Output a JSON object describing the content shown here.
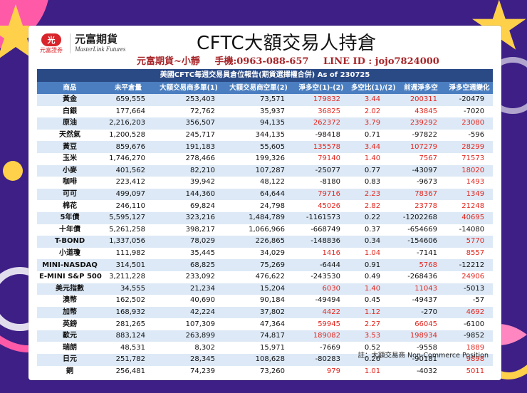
{
  "brand": {
    "badge": "光",
    "sub": "元富證券",
    "name": "元富期貨",
    "en": "MasterLink Futures"
  },
  "title": "CFTC大額交易人持倉",
  "contact": {
    "name": "元富期貨~小靜",
    "phone": "手機:0963-088-657",
    "line": "LINE ID : jojo7824000"
  },
  "table": {
    "caption": "美國CFTC每週交易員倉位報告(期貨選擇權合併) As of  230725",
    "headers": [
      "商品",
      "未平倉量",
      "大額交易商多單(1)",
      "大額交易商空單(2)",
      "淨多空(1)-(2)",
      "多空比(1)/(2)",
      "前週淨多空",
      "淨多空週變化"
    ],
    "rows": [
      [
        "黃金",
        "659,555",
        "253,403",
        "73,571",
        "179832",
        "3.44",
        "200311",
        "-20479"
      ],
      [
        "白銀",
        "177,664",
        "72,762",
        "35,937",
        "36825",
        "2.02",
        "43845",
        "-7020"
      ],
      [
        "原油",
        "2,216,203",
        "356,507",
        "94,135",
        "262372",
        "3.79",
        "239292",
        "23080"
      ],
      [
        "天然氣",
        "1,200,528",
        "245,717",
        "344,135",
        "-98418",
        "0.71",
        "-97822",
        "-596"
      ],
      [
        "黃豆",
        "859,676",
        "191,183",
        "55,605",
        "135578",
        "3.44",
        "107279",
        "28299"
      ],
      [
        "玉米",
        "1,746,270",
        "278,466",
        "199,326",
        "79140",
        "1.40",
        "7567",
        "71573"
      ],
      [
        "小麥",
        "401,562",
        "82,210",
        "107,287",
        "-25077",
        "0.77",
        "-43097",
        "18020"
      ],
      [
        "咖啡",
        "223,412",
        "39,942",
        "48,122",
        "-8180",
        "0.83",
        "-9673",
        "1493"
      ],
      [
        "可可",
        "499,097",
        "144,360",
        "64,644",
        "79716",
        "2.23",
        "78367",
        "1349"
      ],
      [
        "棉花",
        "246,110",
        "69,824",
        "24,798",
        "45026",
        "2.82",
        "23778",
        "21248"
      ],
      [
        "5年債",
        "5,595,127",
        "323,216",
        "1,484,789",
        "-1161573",
        "0.22",
        "-1202268",
        "40695"
      ],
      [
        "十年債",
        "5,261,258",
        "398,217",
        "1,066,966",
        "-668749",
        "0.37",
        "-654669",
        "-14080"
      ],
      [
        "T-BOND",
        "1,337,056",
        "78,029",
        "226,865",
        "-148836",
        "0.34",
        "-154606",
        "5770"
      ],
      [
        "小道瓊",
        "111,982",
        "35,445",
        "34,029",
        "1416",
        "1.04",
        "-7141",
        "8557"
      ],
      [
        "MINI-NASDAQ",
        "314,501",
        "68,825",
        "75,269",
        "-6444",
        "0.91",
        "5768",
        "-12212"
      ],
      [
        "E-MINI S&P 500",
        "3,211,228",
        "233,092",
        "476,622",
        "-243530",
        "0.49",
        "-268436",
        "24906"
      ],
      [
        "美元指數",
        "34,555",
        "21,234",
        "15,204",
        "6030",
        "1.40",
        "11043",
        "-5013"
      ],
      [
        "澳幣",
        "162,502",
        "40,690",
        "90,184",
        "-49494",
        "0.45",
        "-49437",
        "-57"
      ],
      [
        "加幣",
        "168,932",
        "42,224",
        "37,802",
        "4422",
        "1.12",
        "-270",
        "4692"
      ],
      [
        "英鎊",
        "281,265",
        "107,309",
        "47,364",
        "59945",
        "2.27",
        "66045",
        "-6100"
      ],
      [
        "歐元",
        "883,124",
        "263,899",
        "74,817",
        "189082",
        "3.53",
        "198934",
        "-9852"
      ],
      [
        "瑞朗",
        "48,531",
        "8,302",
        "15,971",
        "-7669",
        "0.52",
        "-9558",
        "1889"
      ],
      [
        "日元",
        "251,782",
        "28,345",
        "108,628",
        "-80283",
        "0.26",
        "-90181",
        "9898"
      ],
      [
        "銅",
        "256,481",
        "74,239",
        "73,260",
        "979",
        "1.01",
        "-4032",
        "5011"
      ]
    ]
  },
  "footnote": "註：大額交易商 Non-Commerce Position",
  "colors": {
    "positive": "#e3261f",
    "negative": "#111111",
    "header_dark": "#2a4a86",
    "header_light": "#4a7ec0",
    "row_alt": "#dde9f6"
  }
}
